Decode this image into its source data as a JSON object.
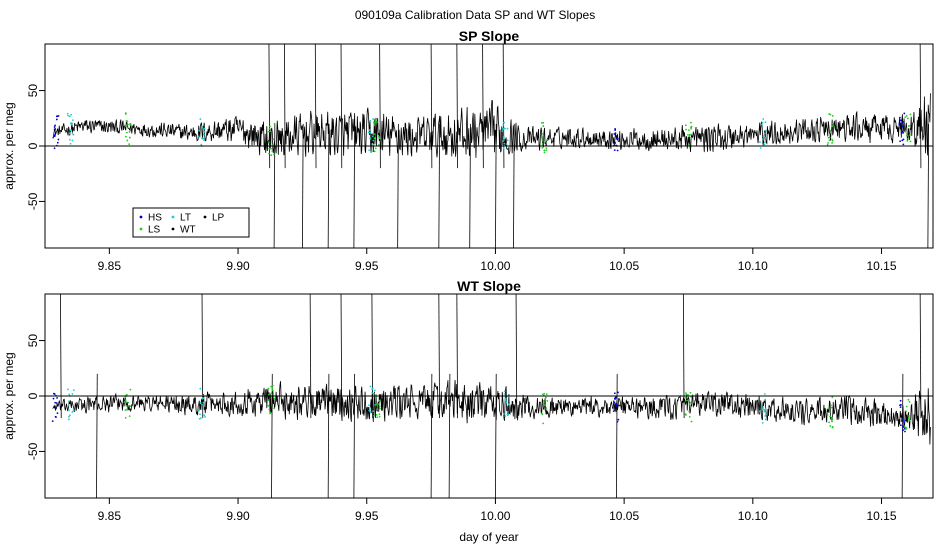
{
  "figure": {
    "title": "090109a   Calibration Data SP and WT Slopes",
    "xlabel": "day of year"
  },
  "chart_data": [
    {
      "type": "line",
      "title": "SP Slope",
      "xlabel": "",
      "ylabel": "approx. per meg",
      "xlim": [
        9.825,
        10.17
      ],
      "ylim": [
        -92,
        92
      ],
      "xticks": [
        9.85,
        9.9,
        9.95,
        10.0,
        10.05,
        10.1,
        10.15
      ],
      "xtick_labels": [
        "9.85",
        "9.90",
        "9.95",
        "10.00",
        "10.05",
        "10.10",
        "10.15"
      ],
      "yticks": [
        -50,
        0,
        50
      ],
      "ytick_labels": [
        "-50",
        "0",
        "50"
      ],
      "hline": 0,
      "legend": {
        "position": "bottom-left",
        "entries": [
          {
            "label": "HS",
            "color": "#0000cc"
          },
          {
            "label": "LS",
            "color": "#22cc22"
          },
          {
            "label": "LT",
            "color": "#22cccc"
          },
          {
            "label": "WT",
            "color": "#000000"
          },
          {
            "label": "LP",
            "color": "#000000"
          }
        ]
      },
      "trend": {
        "x": [
          9.828,
          9.84,
          9.86,
          9.88,
          9.9,
          9.913,
          9.93,
          9.95,
          9.97,
          9.98,
          10.0,
          10.01,
          10.03,
          10.05,
          10.07,
          10.09,
          10.1,
          10.12,
          10.14,
          10.16,
          10.168
        ],
        "y": [
          12,
          18,
          16,
          12,
          15,
          5,
          12,
          10,
          8,
          10,
          12,
          6,
          8,
          6,
          6,
          8,
          10,
          14,
          16,
          16,
          20
        ],
        "noise": [
          5,
          8,
          7,
          9,
          14,
          20,
          22,
          24,
          20,
          25,
          28,
          12,
          10,
          10,
          12,
          14,
          12,
          12,
          14,
          14,
          40
        ]
      },
      "calibration_x": [
        9.829,
        9.835,
        9.857,
        9.886,
        9.913,
        9.952,
        9.954,
        10.004,
        10.019,
        10.047,
        10.075,
        10.104,
        10.13,
        10.158,
        10.16
      ],
      "spike_x": [
        9.912,
        9.914,
        9.918,
        9.925,
        9.93,
        9.935,
        9.94,
        9.945,
        9.955,
        9.962,
        9.975,
        9.978,
        9.985,
        9.99,
        9.995,
        10.0,
        10.003,
        10.007,
        10.165,
        10.168
      ]
    },
    {
      "type": "line",
      "title": "WT Slope",
      "xlabel": "day of year",
      "ylabel": "approx. per meg",
      "xlim": [
        9.825,
        10.17
      ],
      "ylim": [
        -92,
        92
      ],
      "xticks": [
        9.85,
        9.9,
        9.95,
        10.0,
        10.05,
        10.1,
        10.15
      ],
      "xtick_labels": [
        "9.85",
        "9.90",
        "9.95",
        "10.00",
        "10.05",
        "10.10",
        "10.15"
      ],
      "yticks": [
        -50,
        0,
        50
      ],
      "ytick_labels": [
        "-50",
        "0",
        "50"
      ],
      "hline": 0,
      "trend": {
        "x": [
          9.828,
          9.84,
          9.86,
          9.88,
          9.9,
          9.913,
          9.93,
          9.95,
          9.97,
          9.98,
          10.0,
          10.01,
          10.03,
          10.05,
          10.07,
          10.09,
          10.1,
          10.12,
          10.14,
          10.16,
          10.168
        ],
        "y": [
          -10,
          -8,
          -6,
          -8,
          -6,
          -4,
          -5,
          -6,
          -6,
          -4,
          -8,
          -10,
          -10,
          -10,
          -10,
          -6,
          -12,
          -14,
          -14,
          -18,
          -20
        ],
        "noise": [
          5,
          8,
          8,
          10,
          12,
          18,
          16,
          18,
          16,
          20,
          20,
          12,
          10,
          10,
          12,
          12,
          12,
          12,
          14,
          14,
          35
        ]
      },
      "calibration_x": [
        9.829,
        9.835,
        9.857,
        9.886,
        9.913,
        9.952,
        9.954,
        10.004,
        10.019,
        10.047,
        10.075,
        10.104,
        10.13,
        10.158,
        10.16
      ],
      "spike_x": [
        9.831,
        9.845,
        9.886,
        9.913,
        9.928,
        9.935,
        9.94,
        9.945,
        9.952,
        9.975,
        9.978,
        9.982,
        9.985,
        10.0,
        10.008,
        10.047,
        10.073,
        10.158,
        10.165
      ]
    }
  ]
}
